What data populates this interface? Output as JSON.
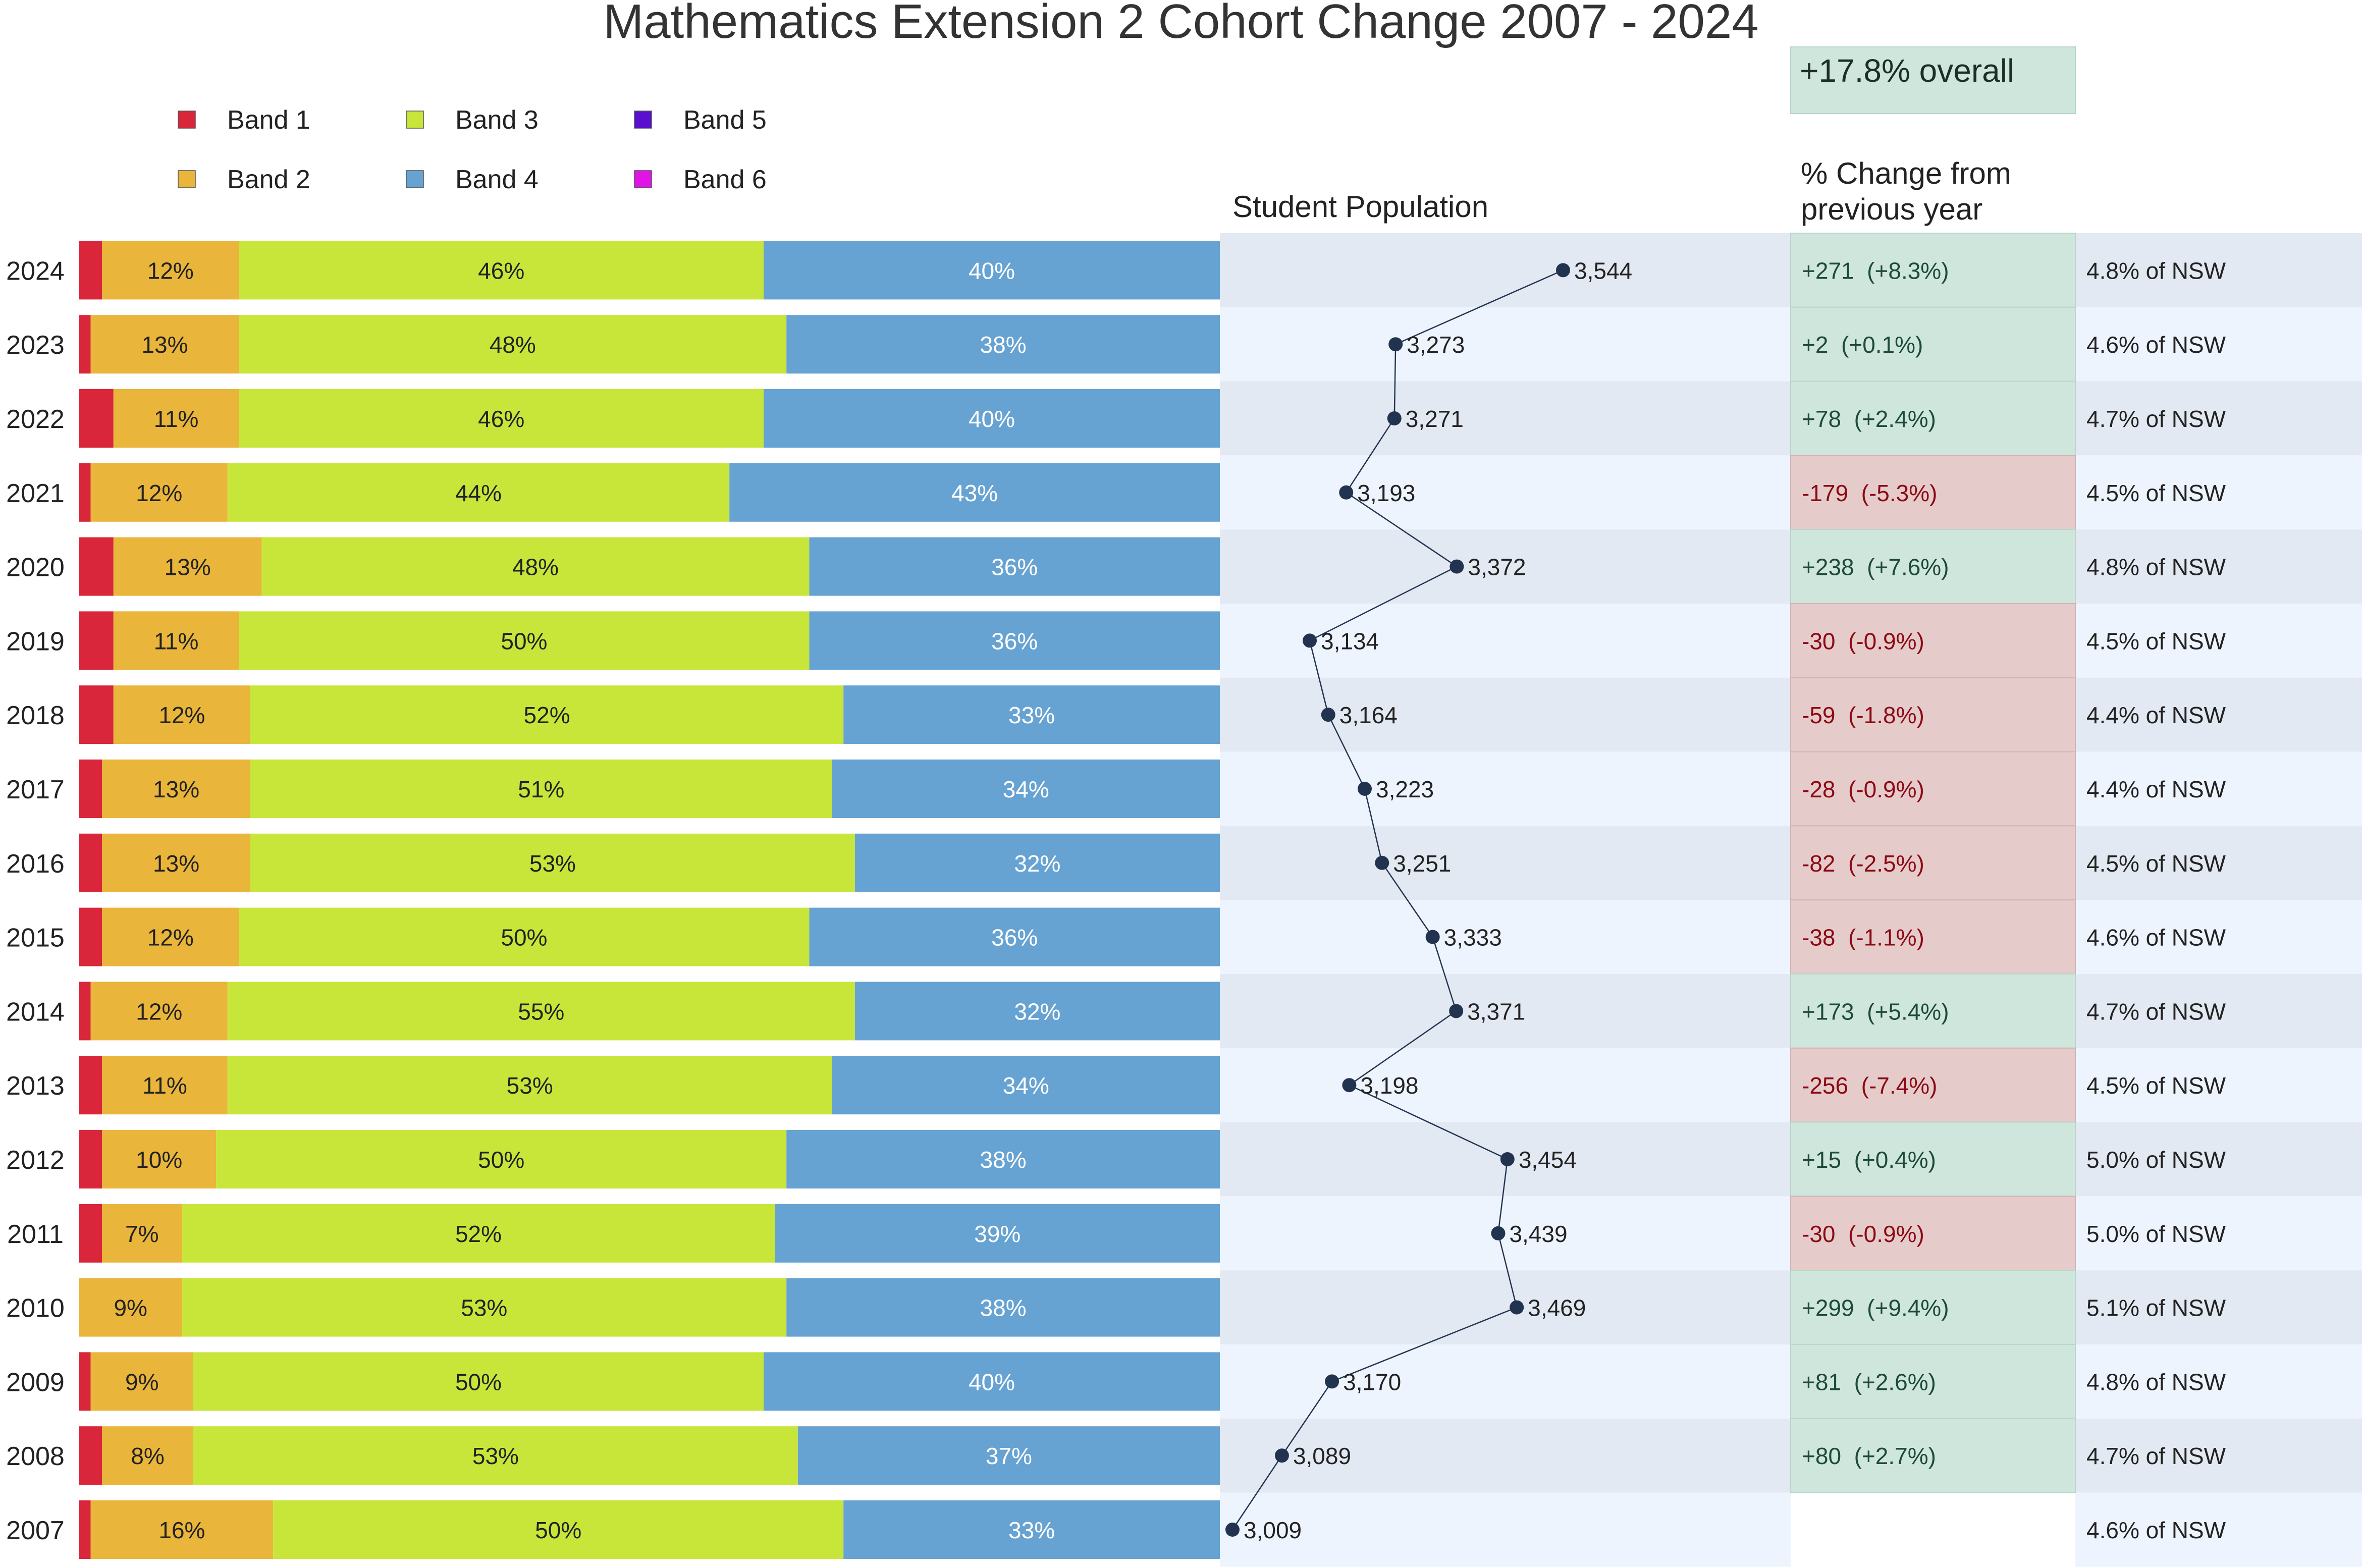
{
  "chart_data": {
    "type": "bar",
    "title": "Mathematics Extension 2 Cohort Change 2007 - 2024",
    "overall": "+17.8% overall",
    "population_title": "Student Population",
    "change_title_1": "% Change from",
    "change_title_2": "previous year",
    "years": [
      "2024",
      "2023",
      "2022",
      "2021",
      "2020",
      "2019",
      "2018",
      "2017",
      "2016",
      "2015",
      "2014",
      "2013",
      "2012",
      "2011",
      "2010",
      "2009",
      "2008",
      "2007"
    ],
    "bands": [
      {
        "name": "Band 1",
        "color": "#d9263a"
      },
      {
        "name": "Band 2",
        "color": "#e9b53a"
      },
      {
        "name": "Band 3",
        "color": "#c8e63a"
      },
      {
        "name": "Band 4",
        "color": "#67a3d2"
      },
      {
        "name": "Band 5",
        "color": "#5a0fcf"
      },
      {
        "name": "Band 6",
        "color": "#e014e6"
      }
    ],
    "shares": [
      [
        0.02,
        0.12,
        0.46,
        0.4,
        0,
        0
      ],
      [
        0.01,
        0.13,
        0.48,
        0.38,
        0,
        0
      ],
      [
        0.03,
        0.11,
        0.46,
        0.4,
        0,
        0
      ],
      [
        0.01,
        0.12,
        0.44,
        0.43,
        0,
        0
      ],
      [
        0.03,
        0.13,
        0.48,
        0.36,
        0,
        0
      ],
      [
        0.03,
        0.11,
        0.5,
        0.36,
        0,
        0
      ],
      [
        0.03,
        0.12,
        0.52,
        0.33,
        0,
        0
      ],
      [
        0.02,
        0.13,
        0.51,
        0.34,
        0,
        0
      ],
      [
        0.02,
        0.13,
        0.53,
        0.32,
        0,
        0
      ],
      [
        0.02,
        0.12,
        0.5,
        0.36,
        0,
        0
      ],
      [
        0.01,
        0.12,
        0.55,
        0.32,
        0,
        0
      ],
      [
        0.02,
        0.11,
        0.53,
        0.34,
        0,
        0
      ],
      [
        0.02,
        0.1,
        0.5,
        0.38,
        0,
        0
      ],
      [
        0.02,
        0.07,
        0.52,
        0.39,
        0,
        0
      ],
      [
        0.0,
        0.09,
        0.53,
        0.38,
        0,
        0
      ],
      [
        0.01,
        0.09,
        0.5,
        0.4,
        0,
        0
      ],
      [
        0.02,
        0.08,
        0.53,
        0.37,
        0,
        0
      ],
      [
        0.01,
        0.16,
        0.5,
        0.33,
        0,
        0
      ]
    ],
    "labels": [
      [
        "",
        "12%",
        "46%",
        "40%"
      ],
      [
        "",
        "13%",
        "48%",
        "38%"
      ],
      [
        "",
        "11%",
        "46%",
        "40%"
      ],
      [
        "",
        "12%",
        "44%",
        "43%"
      ],
      [
        "",
        "13%",
        "48%",
        "36%"
      ],
      [
        "",
        "11%",
        "50%",
        "36%"
      ],
      [
        "",
        "12%",
        "52%",
        "33%"
      ],
      [
        "",
        "13%",
        "51%",
        "34%"
      ],
      [
        "",
        "13%",
        "53%",
        "32%"
      ],
      [
        "",
        "12%",
        "50%",
        "36%"
      ],
      [
        "",
        "12%",
        "55%",
        "32%"
      ],
      [
        "",
        "11%",
        "53%",
        "34%"
      ],
      [
        "",
        "10%",
        "50%",
        "38%"
      ],
      [
        "",
        "7%",
        "52%",
        "39%"
      ],
      [
        "",
        "9%",
        "53%",
        "38%"
      ],
      [
        "",
        "9%",
        "50%",
        "40%"
      ],
      [
        "",
        "8%",
        "53%",
        "37%"
      ],
      [
        "",
        "16%",
        "50%",
        "33%"
      ]
    ],
    "population": [
      3544,
      3273,
      3271,
      3193,
      3372,
      3134,
      3164,
      3223,
      3251,
      3333,
      3371,
      3198,
      3454,
      3439,
      3469,
      3170,
      3089,
      3009
    ],
    "population_labels": [
      "3,544",
      "3,273",
      "3,271",
      "3,193",
      "3,372",
      "3,134",
      "3,164",
      "3,223",
      "3,251",
      "3,333",
      "3,371",
      "3,198",
      "3,454",
      "3,439",
      "3,469",
      "3,170",
      "3,089",
      "3,009"
    ],
    "changes": [
      {
        "text": "+271  (+8.3%)",
        "positive": true
      },
      {
        "text": "+2  (+0.1%)",
        "positive": true
      },
      {
        "text": "+78  (+2.4%)",
        "positive": true
      },
      {
        "text": "-179  (-5.3%)",
        "positive": false
      },
      {
        "text": "+238  (+7.6%)",
        "positive": true
      },
      {
        "text": "-30  (-0.9%)",
        "positive": false
      },
      {
        "text": "-59  (-1.8%)",
        "positive": false
      },
      {
        "text": "-28  (-0.9%)",
        "positive": false
      },
      {
        "text": "-82  (-2.5%)",
        "positive": false
      },
      {
        "text": "-38  (-1.1%)",
        "positive": false
      },
      {
        "text": "+173  (+5.4%)",
        "positive": true
      },
      {
        "text": "-256  (-7.4%)",
        "positive": false
      },
      {
        "text": "+15  (+0.4%)",
        "positive": true
      },
      {
        "text": "-30  (-0.9%)",
        "positive": false
      },
      {
        "text": "+299  (+9.4%)",
        "positive": true
      },
      {
        "text": "+81  (+2.6%)",
        "positive": true
      },
      {
        "text": "+80  (+2.7%)",
        "positive": true
      },
      null
    ],
    "nsw_share": [
      "4.8% of NSW",
      "4.6% of NSW",
      "4.7% of NSW",
      "4.5% of NSW",
      "4.8% of NSW",
      "4.5% of NSW",
      "4.4% of NSW",
      "4.4% of NSW",
      "4.5% of NSW",
      "4.6% of NSW",
      "4.7% of NSW",
      "4.5% of NSW",
      "5.0% of NSW",
      "5.0% of NSW",
      "5.1% of NSW",
      "4.8% of NSW",
      "4.7% of NSW",
      "4.6% of NSW"
    ],
    "colors": {
      "positive_bg": "#cfe6dc",
      "negative_bg": "#e6cbcb",
      "positive_text": "#1d4a3a",
      "negative_text": "#8b0a14",
      "row_dark": "#e3e9f2",
      "row_light": "#eef4fd",
      "line": "#22334f"
    }
  }
}
